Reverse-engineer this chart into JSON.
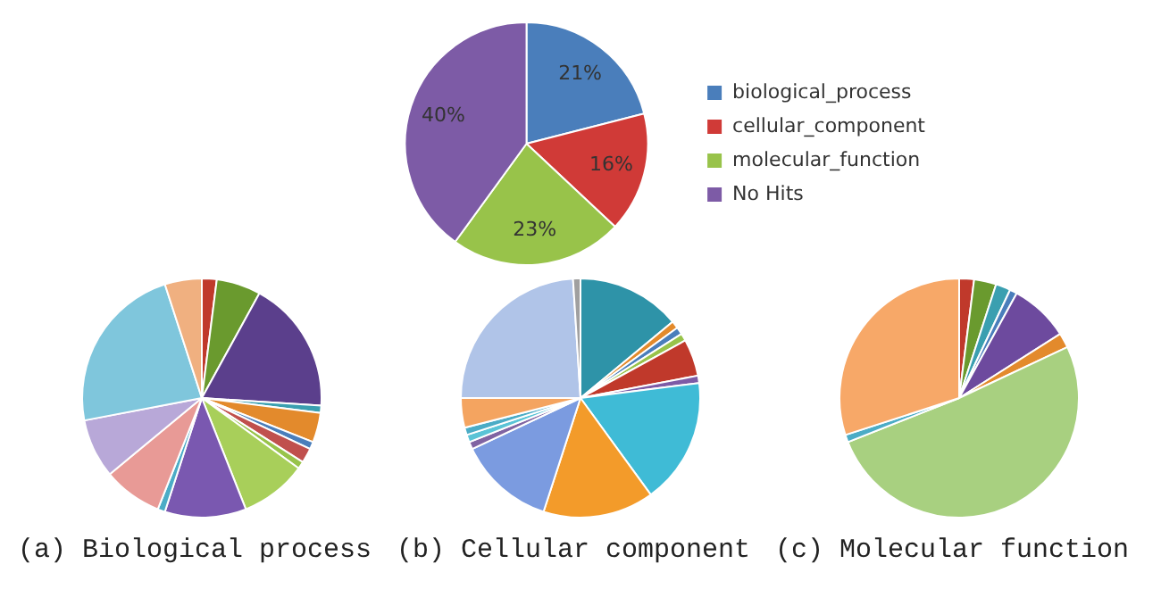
{
  "chart_data": [
    {
      "type": "pie",
      "categories": [
        "biological_process",
        "cellular_component",
        "molecular_function",
        "No Hits"
      ],
      "values": [
        21,
        16,
        23,
        40
      ],
      "colors": [
        "#4a7ebb",
        "#d03a37",
        "#98c34a",
        "#7d5ba6"
      ],
      "value_labels": [
        "21%",
        "16%",
        "23%",
        "40%"
      ],
      "legend": "right"
    },
    {
      "type": "pie",
      "title": "(a) Biological process",
      "categories": [
        null,
        null,
        null,
        null,
        null,
        null,
        null,
        null,
        null,
        null,
        null,
        null,
        null,
        null,
        null
      ],
      "values": [
        2,
        6,
        18,
        1,
        4,
        1,
        2,
        1,
        9,
        11,
        1,
        8,
        8,
        23,
        5
      ],
      "colors": [
        "#c0392b",
        "#6a9a2e",
        "#5b3f8c",
        "#3a9fb0",
        "#e38a2c",
        "#4a7ebb",
        "#c0504d",
        "#98c34a",
        "#a8cf5a",
        "#7a58b0",
        "#4bacc6",
        "#e89a96",
        "#b8a8d8",
        "#7fc6dc",
        "#f0b080"
      ]
    },
    {
      "type": "pie",
      "title": "(b) Cellular component",
      "categories": [
        null,
        null,
        null,
        null,
        null,
        null,
        null,
        null,
        null,
        null,
        null,
        null,
        null,
        null,
        null
      ],
      "values": [
        14,
        1,
        1,
        1,
        5,
        1,
        17,
        15,
        13,
        1,
        1,
        1,
        4,
        24,
        1
      ],
      "colors": [
        "#2e93a8",
        "#e38a2c",
        "#4a7ebb",
        "#98c34a",
        "#c0392b",
        "#7d5ba6",
        "#3fbbd6",
        "#f39b2a",
        "#7b9be0",
        "#8064a2",
        "#5ac3d6",
        "#4bacc6",
        "#f4a460",
        "#b0c4e8",
        "#a0a0a0"
      ]
    },
    {
      "type": "pie",
      "title": "(c) Molecular function",
      "categories": [
        null,
        null,
        null,
        null,
        null,
        null,
        null,
        null,
        null
      ],
      "values": [
        2,
        3,
        2,
        1,
        8,
        2,
        51,
        1,
        30
      ],
      "colors": [
        "#c0392b",
        "#6a9a2e",
        "#3a9fb0",
        "#4a7ebb",
        "#6d4a9e",
        "#e38a2c",
        "#a8d080",
        "#4bacc6",
        "#f7a868"
      ]
    }
  ]
}
